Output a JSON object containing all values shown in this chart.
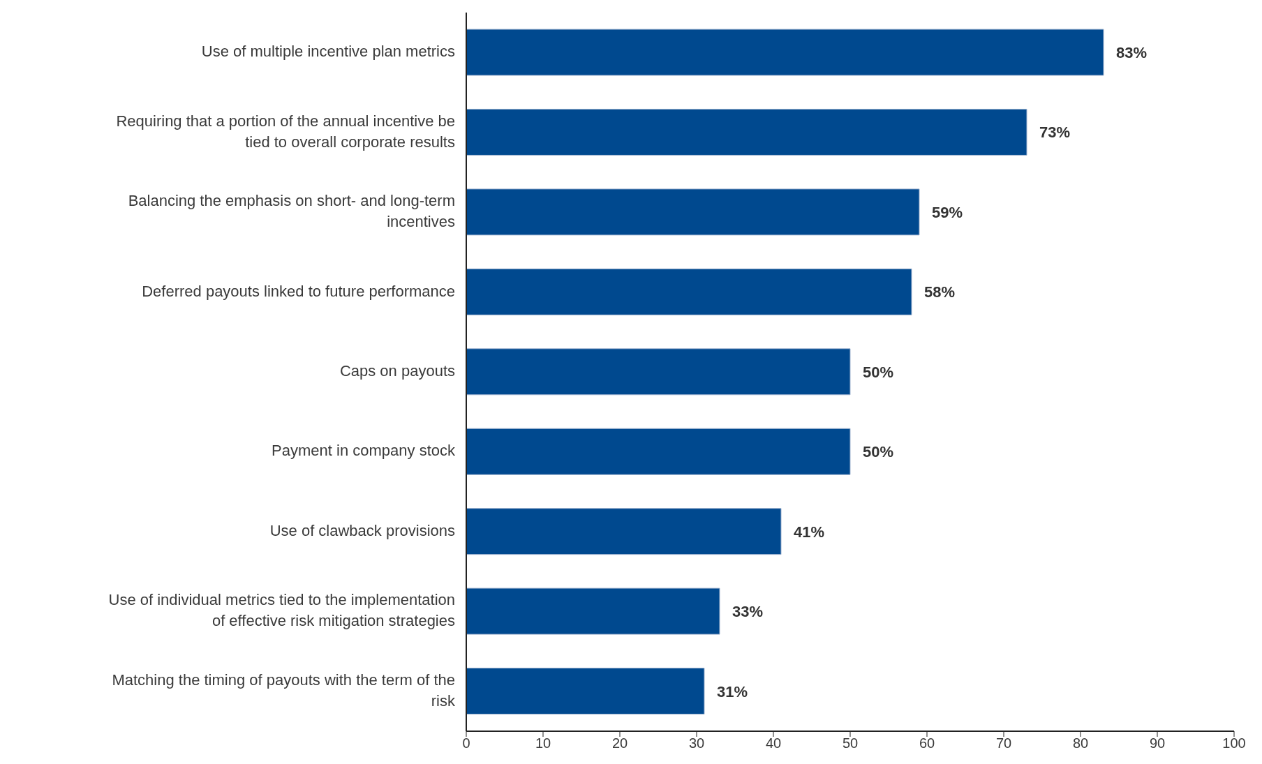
{
  "chart_data": {
    "type": "bar",
    "orientation": "horizontal",
    "categories": [
      "Use of multiple incentive plan metrics",
      "Requiring that a portion of the annual incentive be tied to overall corporate results",
      "Balancing the emphasis on short- and long-term incentives",
      "Deferred payouts linked to future performance",
      "Caps on payouts",
      "Payment in company stock",
      "Use of clawback provisions",
      "Use of individual metrics tied to the implementation of effective risk mitigation strategies",
      "Matching the timing of payouts with the term of the risk"
    ],
    "values": [
      83,
      73,
      59,
      58,
      50,
      50,
      41,
      33,
      31
    ],
    "value_labels": [
      "83%",
      "73%",
      "59%",
      "58%",
      "50%",
      "50%",
      "41%",
      "33%",
      "31%"
    ],
    "color": "#00498f",
    "xlim": [
      0,
      100
    ],
    "xticks": [
      0,
      10,
      20,
      30,
      40,
      50,
      60,
      70,
      80,
      90,
      100
    ],
    "grid": false,
    "legend": false
  }
}
